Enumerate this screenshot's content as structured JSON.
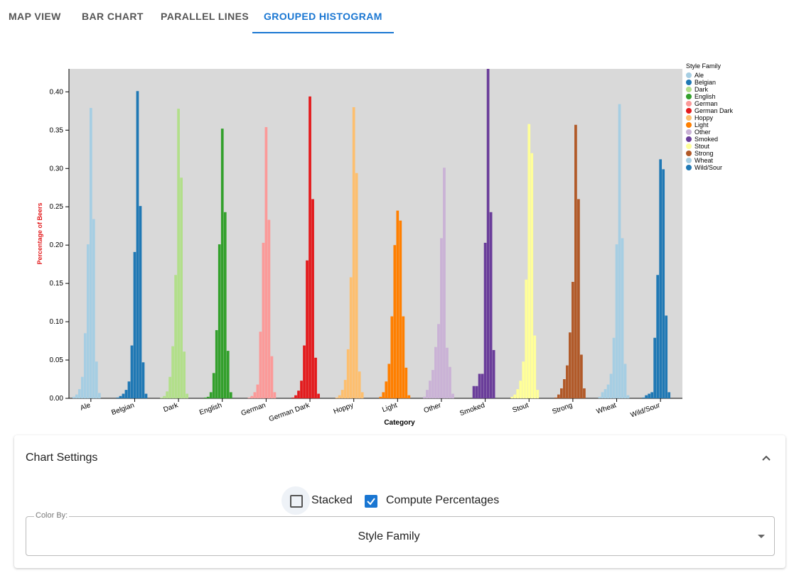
{
  "tabs": [
    "MAP VIEW",
    "BAR CHART",
    "PARALLEL LINES",
    "GROUPED HISTOGRAM"
  ],
  "active_tab": 3,
  "chart_data": {
    "type": "grouped_histogram",
    "x_label": "Category",
    "y_label": "Percentage of Beers",
    "legend_title": "Style Family",
    "categories": [
      "Ale",
      "Belgian",
      "Dark",
      "English",
      "German",
      "German Dark",
      "Hoppy",
      "Light",
      "Other",
      "Smoked",
      "Stout",
      "Strong",
      "Wheat",
      "Wild/Sour"
    ],
    "ylim": [
      0,
      0.43
    ],
    "yticks": [
      {
        "value": 0,
        "label": "0.00"
      },
      {
        "value": 0.05,
        "label": "0.05"
      },
      {
        "value": 0.1,
        "label": "0.10"
      },
      {
        "value": 0.15,
        "label": "0.15"
      },
      {
        "value": 0.2,
        "label": "0.20"
      },
      {
        "value": 0.25,
        "label": "0.25"
      },
      {
        "value": 0.3,
        "label": "0.30"
      },
      {
        "value": 0.35,
        "label": "0.35"
      },
      {
        "value": 0.4,
        "label": "0.40"
      }
    ],
    "grid": false,
    "series": [
      {
        "name": "Ale",
        "color": "#a6cee3",
        "values": [
          0.002,
          0.005,
          0.012,
          0.028,
          0.085,
          0.201,
          0.379,
          0.234,
          0.048,
          0.007,
          0,
          0
        ]
      },
      {
        "name": "Belgian",
        "color": "#1f78b4",
        "values": [
          0.001,
          0.003,
          0.006,
          0.011,
          0.022,
          0.069,
          0.191,
          0.401,
          0.251,
          0.047,
          0.006,
          0
        ]
      },
      {
        "name": "Dark",
        "color": "#b2df8a",
        "values": [
          0.001,
          0.003,
          0.009,
          0.028,
          0.068,
          0.161,
          0.378,
          0.288,
          0.061,
          0.006,
          0,
          0
        ]
      },
      {
        "name": "English",
        "color": "#33a02c",
        "values": [
          0.001,
          0.002,
          0.008,
          0.033,
          0.089,
          0.201,
          0.352,
          0.243,
          0.062,
          0.008,
          0,
          0
        ]
      },
      {
        "name": "German",
        "color": "#fb9a99",
        "values": [
          0.001,
          0.003,
          0.008,
          0.018,
          0.087,
          0.203,
          0.354,
          0.233,
          0.055,
          0.008,
          0,
          0
        ]
      },
      {
        "name": "German Dark",
        "color": "#e31a1c",
        "values": [
          0.001,
          0.004,
          0.01,
          0.023,
          0.069,
          0.18,
          0.394,
          0.26,
          0.053,
          0.006,
          0,
          0
        ]
      },
      {
        "name": "Hoppy",
        "color": "#fdbf6f",
        "values": [
          0.001,
          0.004,
          0.011,
          0.024,
          0.064,
          0.158,
          0.38,
          0.294,
          0.035,
          0.008,
          0,
          0
        ]
      },
      {
        "name": "Light",
        "color": "#ff7f00",
        "values": [
          0.002,
          0.008,
          0.022,
          0.045,
          0.107,
          0.2,
          0.245,
          0.232,
          0.107,
          0.04,
          0.004,
          0
        ]
      },
      {
        "name": "Other",
        "color": "#cab2d6",
        "values": [
          0.002,
          0.011,
          0.023,
          0.037,
          0.067,
          0.097,
          0.209,
          0.301,
          0.066,
          0.041,
          0.006,
          0
        ]
      },
      {
        "name": "Smoked",
        "color": "#6a3d9a",
        "values": [
          0,
          0,
          0.016,
          0.016,
          0.032,
          0.032,
          0.203,
          0.43,
          0.243,
          0.063,
          0,
          0
        ]
      },
      {
        "name": "Stout",
        "color": "#ffff99",
        "values": [
          0.002,
          0.005,
          0.012,
          0.023,
          0.048,
          0.155,
          0.358,
          0.32,
          0.082,
          0.011,
          0,
          0
        ]
      },
      {
        "name": "Strong",
        "color": "#b15928",
        "values": [
          0.001,
          0.005,
          0.013,
          0.025,
          0.043,
          0.086,
          0.152,
          0.357,
          0.26,
          0.057,
          0.013,
          0
        ]
      },
      {
        "name": "Wheat",
        "color": "#a6cee3",
        "values": [
          0.002,
          0.008,
          0.012,
          0.018,
          0.032,
          0.079,
          0.201,
          0.384,
          0.209,
          0.045,
          0.004,
          0
        ]
      },
      {
        "name": "Wild/Sour",
        "color": "#1f78b4",
        "values": [
          0.001,
          0.004,
          0.006,
          0.008,
          0.079,
          0.161,
          0.312,
          0.299,
          0.108,
          0.008,
          0,
          0
        ]
      }
    ]
  },
  "settings": {
    "title": "Chart Settings",
    "options": [
      {
        "label": "Stacked",
        "checked": false
      },
      {
        "label": "Compute Percentages",
        "checked": true
      }
    ],
    "color_by": {
      "label": "Color By:",
      "value": "Style Family"
    }
  }
}
